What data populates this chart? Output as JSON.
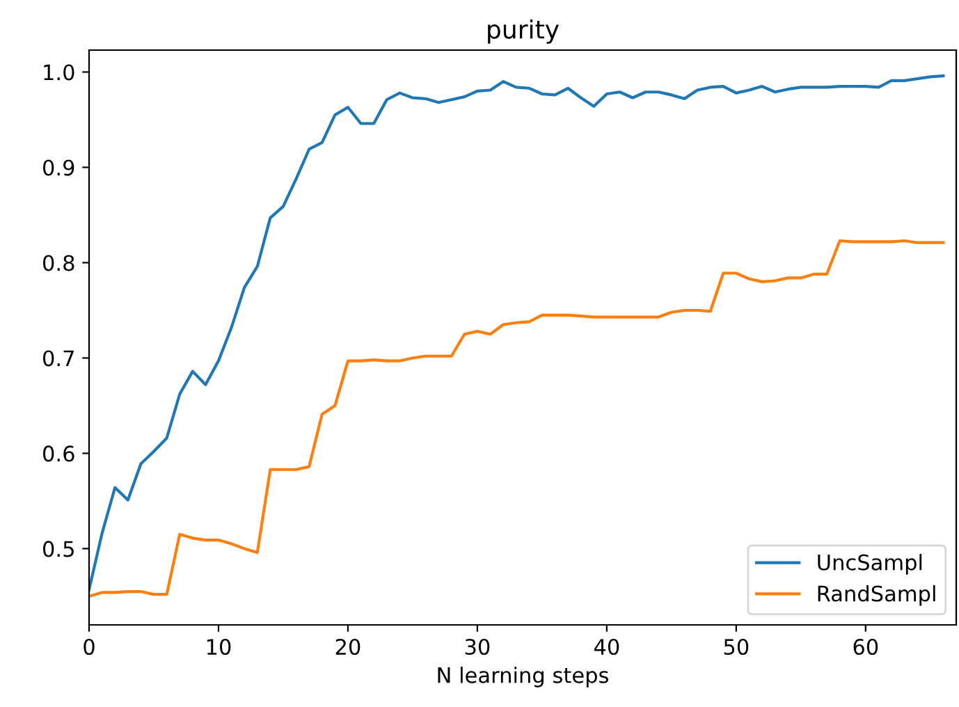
{
  "chart_data": {
    "type": "line",
    "title": "purity",
    "xlabel": "N learning steps",
    "x": [
      0,
      1,
      2,
      3,
      4,
      5,
      6,
      7,
      8,
      9,
      10,
      11,
      12,
      13,
      14,
      15,
      16,
      17,
      18,
      19,
      20,
      21,
      22,
      23,
      24,
      25,
      26,
      27,
      28,
      29,
      30,
      31,
      32,
      33,
      34,
      35,
      36,
      37,
      38,
      39,
      40,
      41,
      42,
      43,
      44,
      45,
      46,
      47,
      48,
      49,
      50,
      51,
      52,
      53,
      54,
      55,
      56,
      57,
      58,
      59,
      60,
      61,
      62,
      63,
      64,
      65,
      66
    ],
    "series": [
      {
        "name": "UncSampl",
        "color": "#1f77b4",
        "values": [
          0.457,
          0.516,
          0.564,
          0.551,
          0.589,
          0.602,
          0.616,
          0.662,
          0.686,
          0.672,
          0.697,
          0.732,
          0.774,
          0.796,
          0.847,
          0.859,
          0.888,
          0.919,
          0.926,
          0.955,
          0.963,
          0.946,
          0.946,
          0.971,
          0.978,
          0.973,
          0.972,
          0.968,
          0.971,
          0.974,
          0.98,
          0.981,
          0.99,
          0.984,
          0.983,
          0.977,
          0.976,
          0.983,
          0.973,
          0.964,
          0.977,
          0.979,
          0.973,
          0.979,
          0.979,
          0.976,
          0.972,
          0.981,
          0.984,
          0.985,
          0.978,
          0.981,
          0.985,
          0.979,
          0.982,
          0.984,
          0.984,
          0.984,
          0.985,
          0.985,
          0.985,
          0.984,
          0.991,
          0.991,
          0.993,
          0.995,
          0.996
        ]
      },
      {
        "name": "RandSampl",
        "color": "#ff7f0e",
        "values": [
          0.45,
          0.454,
          0.454,
          0.455,
          0.455,
          0.452,
          0.452,
          0.515,
          0.511,
          0.509,
          0.509,
          0.505,
          0.5,
          0.496,
          0.583,
          0.583,
          0.583,
          0.586,
          0.641,
          0.65,
          0.697,
          0.697,
          0.698,
          0.697,
          0.697,
          0.7,
          0.702,
          0.702,
          0.702,
          0.725,
          0.728,
          0.725,
          0.735,
          0.737,
          0.738,
          0.745,
          0.745,
          0.745,
          0.744,
          0.743,
          0.743,
          0.743,
          0.743,
          0.743,
          0.743,
          0.748,
          0.75,
          0.75,
          0.749,
          0.789,
          0.789,
          0.783,
          0.78,
          0.781,
          0.784,
          0.784,
          0.788,
          0.788,
          0.823,
          0.822,
          0.822,
          0.822,
          0.822,
          0.823,
          0.821,
          0.821,
          0.821
        ]
      }
    ],
    "xlim": [
      0,
      67
    ],
    "xticks": [
      0,
      10,
      20,
      30,
      40,
      50,
      60
    ],
    "ylim": [
      0.42,
      1.023
    ],
    "yticks": [
      0.5,
      0.6,
      0.7,
      0.8,
      0.9,
      {
        "value": 1.0,
        "label": "1.0"
      }
    ],
    "grid": false,
    "legend": "lower right",
    "marker": "none",
    "line_style": "solid"
  }
}
